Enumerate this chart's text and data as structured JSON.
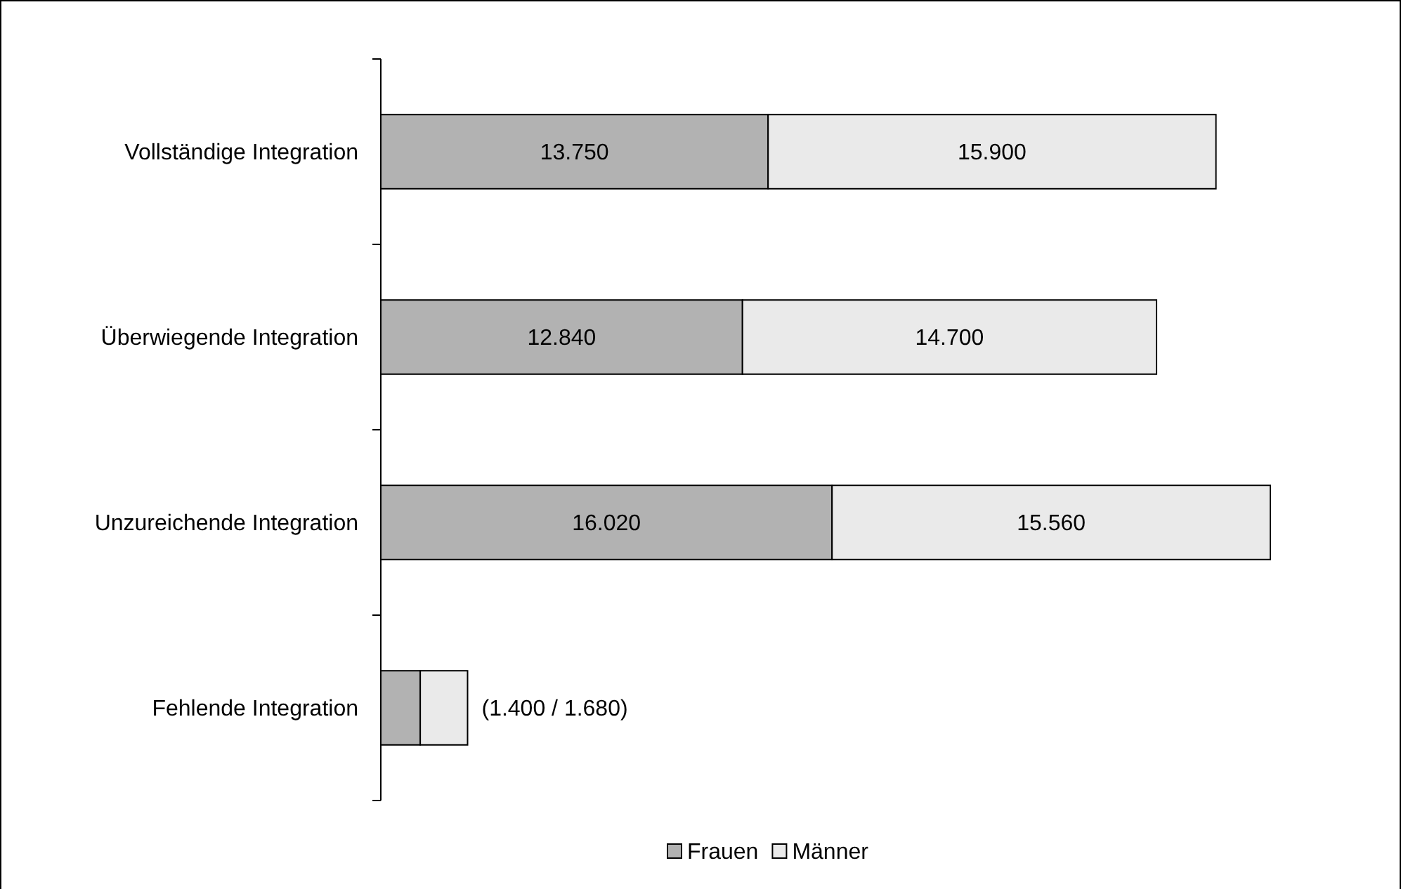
{
  "chart_data": {
    "type": "bar",
    "orientation": "horizontal",
    "stacked": true,
    "categories": [
      "Vollständige Integration",
      "Überwiegende Integration",
      "Unzureichende Integration",
      "Fehlende Integration"
    ],
    "series": [
      {
        "name": "Frauen",
        "color": "#b2b2b2",
        "values": [
          13750,
          12840,
          16020,
          1400
        ],
        "value_labels": [
          "13.750",
          "12.840",
          "16.020",
          null
        ]
      },
      {
        "name": "Männer",
        "color": "#eaeaea",
        "values": [
          15900,
          14700,
          15560,
          1680
        ],
        "value_labels": [
          "15.900",
          "14.700",
          "15.560",
          null
        ]
      }
    ],
    "annotations": [
      "(1.400 / 1.680)"
    ],
    "legend": "bottom",
    "tick_labels": "y"
  }
}
